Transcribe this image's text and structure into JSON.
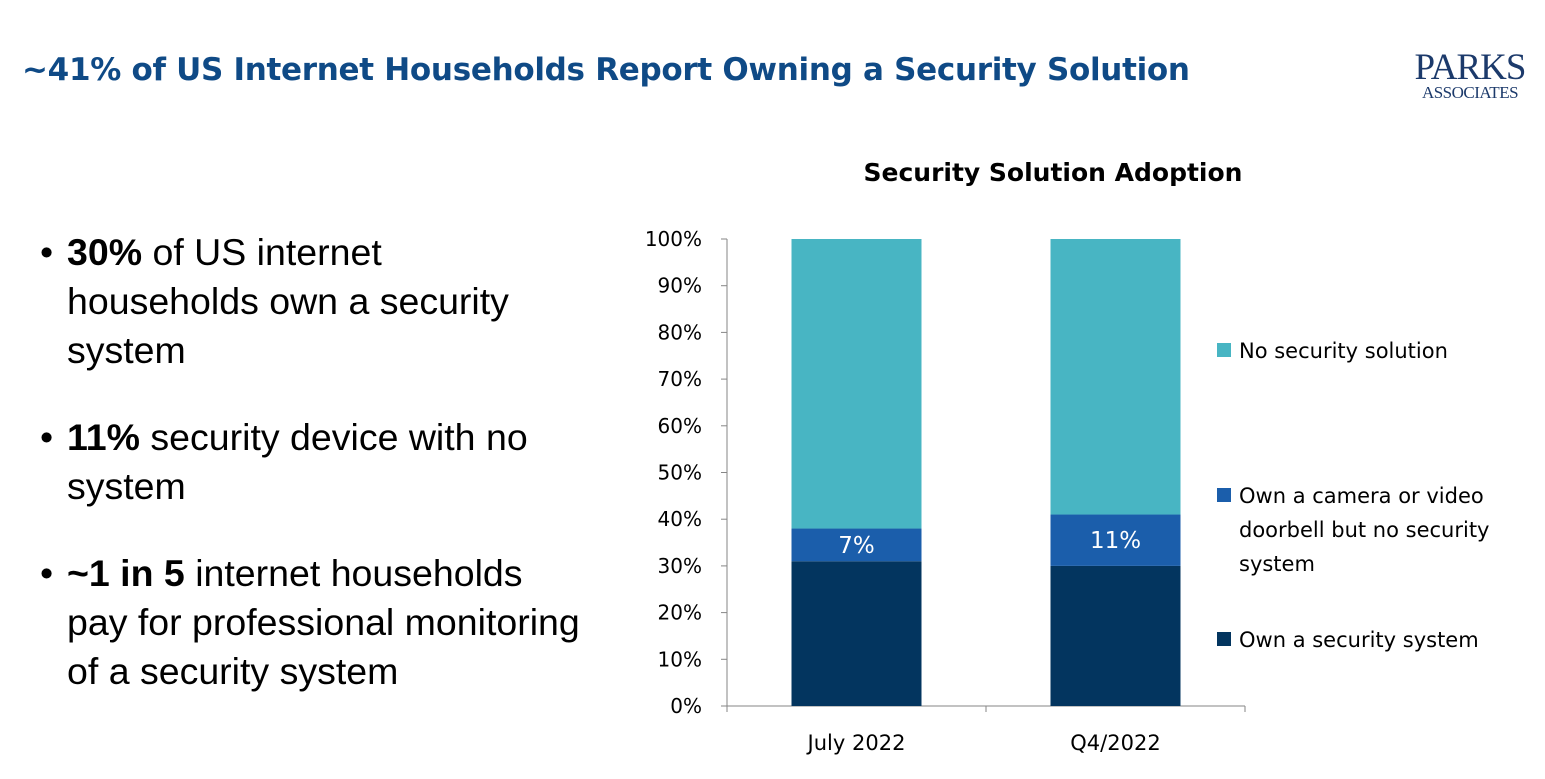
{
  "slide": {
    "title": "~41% of US Internet Households Report Owning a Security Solution",
    "logo": {
      "line1": "PARKS",
      "line2": "ASSOCIATES"
    }
  },
  "bullets": [
    {
      "bold": "30%",
      "text": " of US internet households own a security system"
    },
    {
      "bold": "11%",
      "text": " security device with no system"
    },
    {
      "bold": "~1 in 5",
      "text": " internet households pay for professional monitoring of a security system"
    }
  ],
  "chart_data": {
    "type": "bar",
    "stacked": true,
    "percent": true,
    "title": "Security Solution Adoption",
    "categories": [
      "July 2022",
      "Q4/2022"
    ],
    "ylim": [
      0,
      100
    ],
    "yticks": [
      "0%",
      "10%",
      "20%",
      "30%",
      "40%",
      "50%",
      "60%",
      "70%",
      "80%",
      "90%",
      "100%"
    ],
    "legend_position": "right",
    "series": [
      {
        "name": "Own a security system",
        "color": "#03355f",
        "values": [
          31,
          30
        ],
        "labels": [
          "",
          ""
        ]
      },
      {
        "name": "Own a camera or video doorbell but no security system",
        "legend_lines": [
          "Own a camera or video",
          "doorbell but no security",
          "system"
        ],
        "color": "#1b5eab",
        "values": [
          7,
          11
        ],
        "labels": [
          "7%",
          "11%"
        ]
      },
      {
        "name": "No security solution",
        "color": "#48b5c3",
        "values": [
          62,
          59
        ],
        "labels": [
          "",
          ""
        ]
      }
    ]
  }
}
